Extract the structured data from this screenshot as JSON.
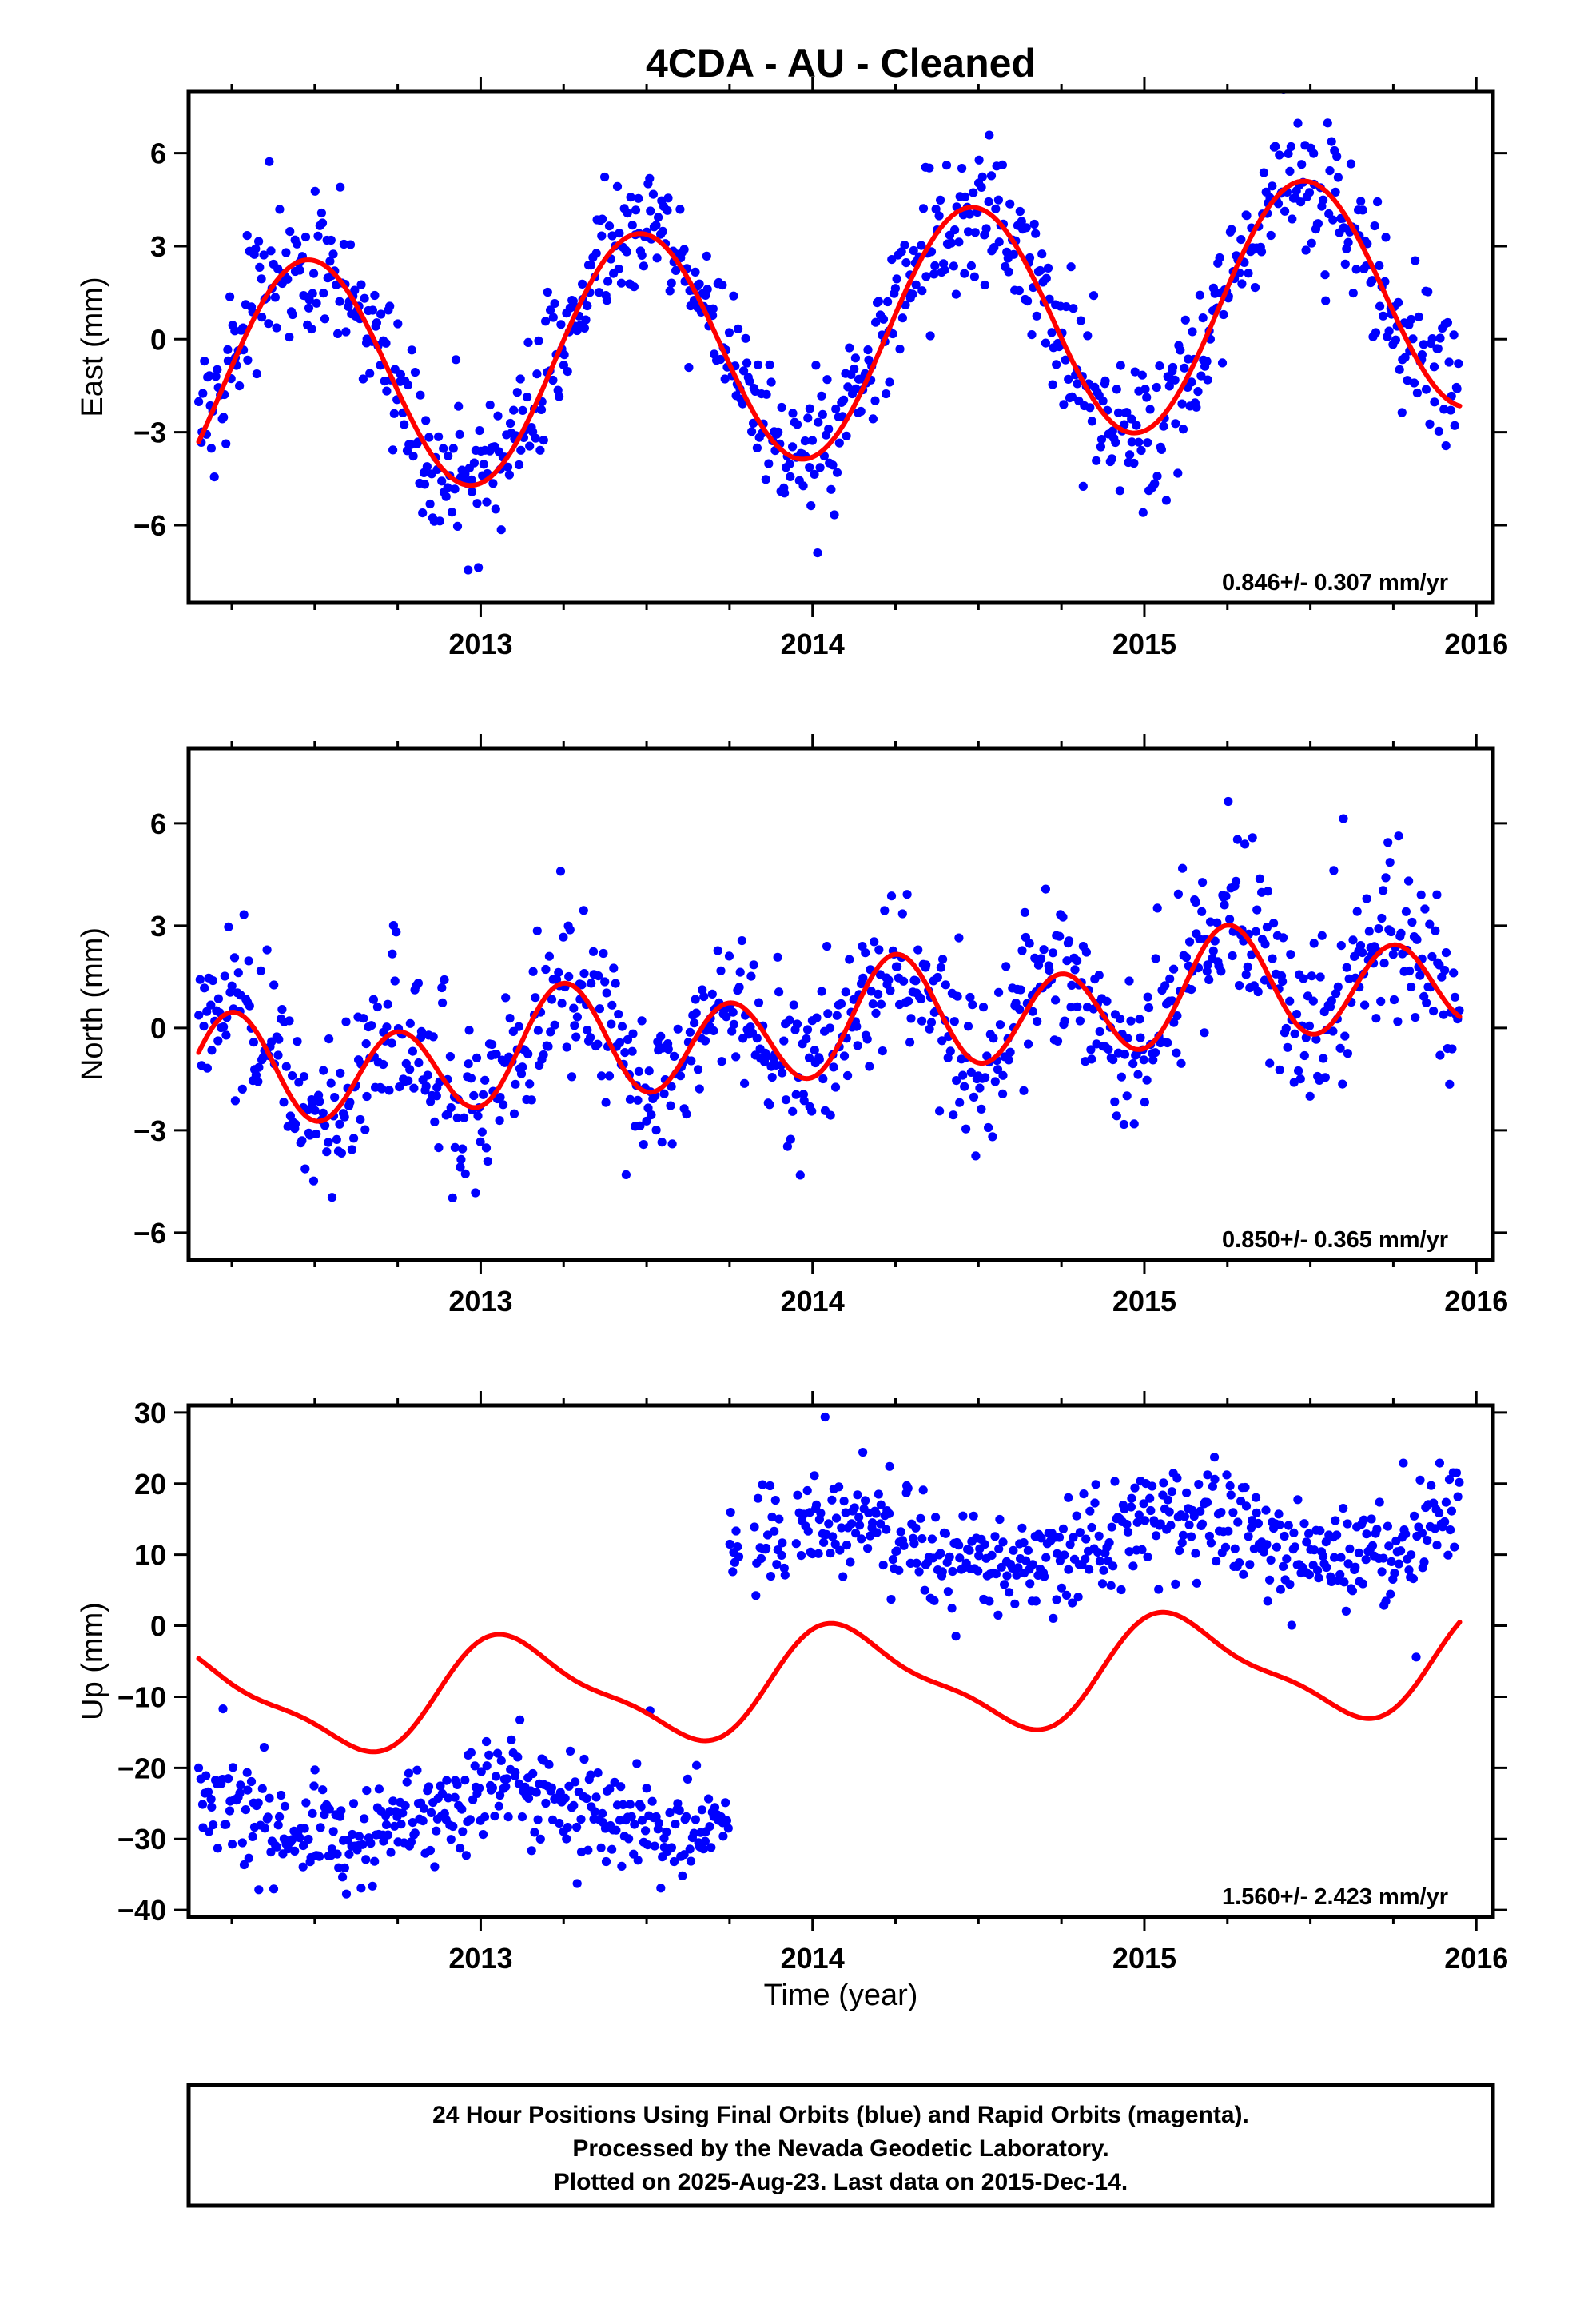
{
  "chart_data": [
    {
      "type": "scatter",
      "title": "4CDA  - AU - Cleaned",
      "xlabel": "",
      "ylabel": "East (mm)",
      "xlim": [
        2012.12,
        2016.05
      ],
      "ylim": [
        -8.5,
        8.0
      ],
      "x_ticks": [
        2013,
        2014,
        2015,
        2016
      ],
      "x_tick_labels": [
        "2013",
        "2014",
        "2015",
        "2016"
      ],
      "y_ticks": [
        -6,
        -3,
        0,
        3,
        6
      ],
      "y_tick_labels": [
        "−6",
        "−3",
        "0",
        "3",
        "6"
      ],
      "rate_label": "0.846+/- 0.307 mm/yr",
      "colors": {
        "points": "#0000ff",
        "model": "#ff0000"
      },
      "series": [
        {
          "kind": "scatter-points",
          "x_range": [
            2012.15,
            2015.95
          ],
          "count": 900,
          "gaps": [],
          "trend": {
            "t0": 2014.0,
            "offset": 0.0,
            "rate": 0.846
          },
          "seasonal": {
            "annual_cos": -3.8,
            "annual_sin": 0.6,
            "semi_cos": 0.0,
            "semi_sin": 0.0
          },
          "steps": [],
          "scatter_sd": 1.1
        },
        {
          "kind": "model-line",
          "x_range": [
            2012.15,
            2015.95
          ],
          "trend": {
            "t0": 2014.0,
            "offset": 0.0,
            "rate": 0.846
          },
          "seasonal": {
            "annual_cos": -3.8,
            "annual_sin": 0.6,
            "semi_cos": 0.0,
            "semi_sin": 0.0
          },
          "steps": []
        }
      ],
      "grid": false
    },
    {
      "type": "scatter",
      "title": "",
      "xlabel": "",
      "ylabel": "North (mm)",
      "xlim": [
        2012.12,
        2016.05
      ],
      "ylim": [
        -6.8,
        8.2
      ],
      "x_ticks": [
        2013,
        2014,
        2015,
        2016
      ],
      "x_tick_labels": [
        "2013",
        "2014",
        "2015",
        "2016"
      ],
      "y_ticks": [
        -6,
        -3,
        0,
        3,
        6
      ],
      "y_tick_labels": [
        "−6",
        "−3",
        "0",
        "3",
        "6"
      ],
      "rate_label": "0.850+/- 0.365 mm/yr",
      "colors": {
        "points": "#0000ff",
        "model": "#ff0000"
      },
      "series": [
        {
          "kind": "scatter-points",
          "x_range": [
            2012.15,
            2015.95
          ],
          "count": 900,
          "gaps": [],
          "trend": {
            "t0": 2014.0,
            "offset": 0.0,
            "rate": 0.85
          },
          "seasonal": {
            "annual_cos": 0.0,
            "annual_sin": 0.5,
            "semi_cos": -1.45,
            "semi_sin": 0.0
          },
          "steps": [],
          "scatter_sd": 1.2
        },
        {
          "kind": "model-line",
          "x_range": [
            2012.15,
            2015.95
          ],
          "trend": {
            "t0": 2014.0,
            "offset": 0.0,
            "rate": 0.85
          },
          "seasonal": {
            "annual_cos": 0.0,
            "annual_sin": 0.5,
            "semi_cos": -1.45,
            "semi_sin": 0.0
          },
          "steps": []
        }
      ],
      "grid": false
    },
    {
      "type": "scatter",
      "title": "",
      "xlabel": "Time (year)",
      "ylabel": "Up (mm)",
      "xlim": [
        2012.12,
        2016.05
      ],
      "ylim": [
        -41,
        31
      ],
      "x_ticks": [
        2013,
        2014,
        2015,
        2016
      ],
      "x_tick_labels": [
        "2013",
        "2014",
        "2015",
        "2016"
      ],
      "y_ticks": [
        -40,
        -30,
        -20,
        -10,
        0,
        10,
        20,
        30
      ],
      "y_tick_labels": [
        "−40",
        "−30",
        "−20",
        "−10",
        "0",
        "10",
        "20",
        "30"
      ],
      "rate_label": "1.560+/- 2.423 mm/yr",
      "colors": {
        "points": "#0000ff",
        "model": "#ff0000"
      },
      "series": [
        {
          "kind": "scatter-points",
          "x_range": [
            2012.15,
            2015.95
          ],
          "count": 880,
          "gaps": [
            [
              2013.78,
              2013.82
            ],
            [
              2013.92,
              2013.95
            ]
          ],
          "trend": {
            "t0": 2014.0,
            "offset": -25.0,
            "rate": 1.56
          },
          "seasonal": {
            "annual_cos": 3.0,
            "annual_sin": 2.0,
            "semi_cos": 0.0,
            "semi_sin": 0.0
          },
          "steps": [
            {
              "t": 2013.75,
              "size": 36.0
            }
          ],
          "scatter_sd": 3.8
        },
        {
          "kind": "model-line",
          "x_range": [
            2012.15,
            2015.95
          ],
          "trend": {
            "t0": 2014.0,
            "offset": -8.0,
            "rate": 1.56
          },
          "seasonal": {
            "annual_cos": 5.5,
            "annual_sin": 4.5,
            "semi_cos": 2.0,
            "semi_sin": 0.0
          },
          "steps": []
        }
      ],
      "grid": false
    }
  ],
  "footer": {
    "line1": "24 Hour Positions Using Final Orbits (blue) and Rapid Orbits (magenta).",
    "line2": "Processed by the Nevada Geodetic Laboratory.",
    "line3": "Plotted on 2025-Aug-23. Last data on 2015-Dec-14."
  }
}
